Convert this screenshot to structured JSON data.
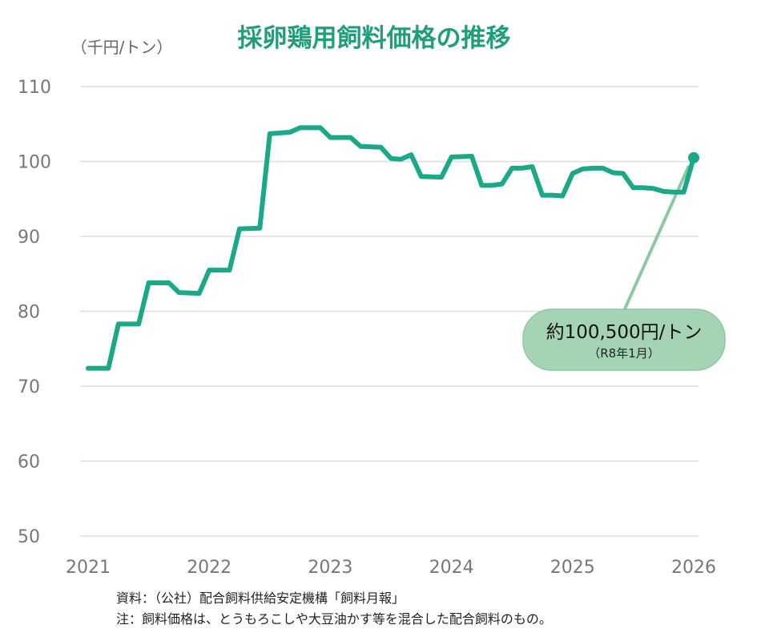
{
  "title": "採卵鶏用飼料価格の推移",
  "unit_label": "（千円/トン）",
  "callout": {
    "main": "約100,500円/トン",
    "sub": "（R8年1月）"
  },
  "notes": [
    "資料：（公社）配合飼料供給安定機構「飼料月報」",
    "注：飼料価格は、とうもろこしや大豆油かす等を混合した配合飼料のもの。"
  ],
  "colors": {
    "line": "#1aa987",
    "title": "#1f9e7c",
    "grid": "#dddddd",
    "callout_fill": "#a5d4b5",
    "callout_border": "#8cc8a2"
  },
  "chart_data": {
    "type": "line",
    "title": "採卵鶏用飼料価格の推移",
    "ylabel": "（千円/トン）",
    "xlabel": "",
    "ylim": [
      50,
      110
    ],
    "xlim": [
      2021,
      2026
    ],
    "yticks": [
      50,
      60,
      70,
      80,
      90,
      100,
      110
    ],
    "xticks": [
      2021,
      2022,
      2023,
      2024,
      2025,
      2026
    ],
    "grid": "horizontal",
    "series": [
      {
        "name": "",
        "points": [
          [
            2021.0,
            72.4
          ],
          [
            2021.167,
            72.4
          ],
          [
            2021.25,
            78.3
          ],
          [
            2021.417,
            78.3
          ],
          [
            2021.5,
            83.8
          ],
          [
            2021.667,
            83.8
          ],
          [
            2021.75,
            82.5
          ],
          [
            2021.917,
            82.4
          ],
          [
            2022.0,
            85.5
          ],
          [
            2022.167,
            85.5
          ],
          [
            2022.25,
            91.0
          ],
          [
            2022.417,
            91.1
          ],
          [
            2022.5,
            103.7
          ],
          [
            2022.667,
            103.9
          ],
          [
            2022.75,
            104.5
          ],
          [
            2022.917,
            104.5
          ],
          [
            2023.0,
            103.2
          ],
          [
            2023.167,
            103.2
          ],
          [
            2023.25,
            102.0
          ],
          [
            2023.417,
            101.9
          ],
          [
            2023.5,
            100.4
          ],
          [
            2023.583,
            100.3
          ],
          [
            2023.667,
            100.9
          ],
          [
            2023.75,
            98.0
          ],
          [
            2023.917,
            97.9
          ],
          [
            2024.0,
            100.6
          ],
          [
            2024.167,
            100.7
          ],
          [
            2024.25,
            96.8
          ],
          [
            2024.333,
            96.8
          ],
          [
            2024.417,
            97.0
          ],
          [
            2024.5,
            99.1
          ],
          [
            2024.583,
            99.1
          ],
          [
            2024.667,
            99.3
          ],
          [
            2024.75,
            95.5
          ],
          [
            2024.833,
            95.5
          ],
          [
            2024.917,
            95.4
          ],
          [
            2025.0,
            98.4
          ],
          [
            2025.083,
            99.0
          ],
          [
            2025.167,
            99.1
          ],
          [
            2025.25,
            99.1
          ],
          [
            2025.333,
            98.5
          ],
          [
            2025.417,
            98.4
          ],
          [
            2025.5,
            96.5
          ],
          [
            2025.583,
            96.5
          ],
          [
            2025.667,
            96.4
          ],
          [
            2025.75,
            96.0
          ],
          [
            2025.833,
            95.9
          ],
          [
            2025.917,
            95.9
          ],
          [
            2026.0,
            100.5
          ]
        ]
      }
    ],
    "annotations": [
      {
        "x": 2026.0,
        "y": 100.5,
        "text": "約100,500円/トン",
        "subtext": "（R8年1月）"
      }
    ]
  }
}
